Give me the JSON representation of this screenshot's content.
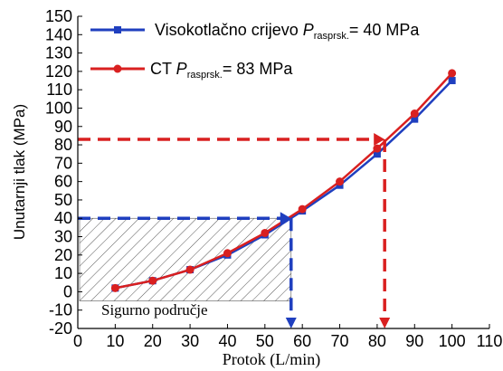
{
  "chart_data": {
    "type": "line",
    "xlabel": "Protok (L/min)",
    "ylabel": "Unutarnji tlak (MPa)",
    "xlim": [
      0,
      110
    ],
    "ylim": [
      -20,
      150
    ],
    "xticks": [
      0,
      10,
      20,
      30,
      40,
      50,
      60,
      70,
      80,
      90,
      100,
      110
    ],
    "yticks": [
      -20,
      -10,
      0,
      10,
      20,
      30,
      40,
      50,
      60,
      70,
      80,
      90,
      100,
      110,
      120,
      130,
      140,
      150
    ],
    "grid": false,
    "legend_position": "top-left",
    "series": [
      {
        "name_main": "Visokotlačno crijevo ",
        "name_var": "P",
        "name_sub": "rasprsk.",
        "name_value": "= 40 MPa",
        "color": "#1f3fbf",
        "marker": "square",
        "x": [
          10,
          20,
          30,
          40,
          50,
          60,
          70,
          80,
          90,
          100
        ],
        "y": [
          2,
          6,
          12,
          20,
          31,
          44,
          58,
          75,
          94,
          115
        ]
      },
      {
        "name_main": "CT ",
        "name_var": "P",
        "name_sub": "rasprsk.",
        "name_value": "= 83 MPa",
        "color": "#d92020",
        "marker": "circle",
        "x": [
          10,
          20,
          30,
          40,
          50,
          60,
          70,
          80,
          90,
          100
        ],
        "y": [
          2,
          6,
          12,
          21,
          32,
          45,
          60,
          78,
          97,
          119
        ]
      }
    ],
    "annotations": {
      "safe_zone_label": "Sigurno područje",
      "safe_zone": {
        "x_max": 57,
        "y_min": -5,
        "y_max": 40
      },
      "blue_marker": {
        "x": 57,
        "y": 40,
        "color": "#1f3fbf"
      },
      "red_marker": {
        "x": 82,
        "y": 83,
        "color": "#d92020"
      }
    }
  }
}
